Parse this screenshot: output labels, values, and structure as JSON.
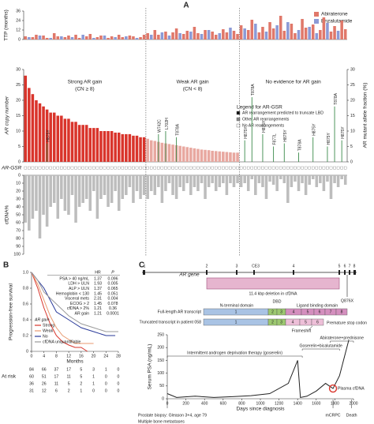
{
  "panel_labels": [
    "A",
    "B",
    "C"
  ],
  "chart_data": [
    {
      "type": "bar",
      "ylabel": "AR copy number",
      "ylim": [
        0,
        30
      ],
      "yticks": [
        0,
        5,
        10,
        15,
        20,
        25,
        30
      ],
      "y2label": "AR mutant allele fraction (%)",
      "y2lim": [
        0,
        30
      ],
      "y2ticks": [
        0,
        5,
        10,
        15,
        20,
        25,
        30
      ],
      "mutation_color": "#3a8a4a",
      "ttp": {
        "ylabel": "TTP (months)",
        "ylim": [
          0,
          36
        ],
        "yticks": [
          0,
          12,
          24,
          36
        ],
        "series": [
          {
            "name": "Abiraterone",
            "color": "#e0786a"
          },
          {
            "name": "Enzalutamide",
            "color": "#8c9ad6"
          }
        ]
      },
      "gsr": {
        "label": "AR-GSR",
        "legend_title": "Legend for AR-GSR",
        "legend": [
          "AR rearrangement predicted to truncate LBD",
          "Other AR rearrangements",
          "No AR rearrangements"
        ]
      },
      "cfdna": {
        "ylabel": "cfDNA%",
        "ylim": [
          0,
          100
        ],
        "yticks": [
          0,
          10,
          20,
          30,
          40,
          50,
          60,
          70,
          80,
          90,
          100
        ]
      },
      "groups": [
        {
          "name": "Strong AR gain",
          "note": "(CN ≥ 8)",
          "color": "#d9342b",
          "values": [
            28,
            24,
            22,
            20,
            19,
            18,
            17,
            16,
            16,
            15,
            15,
            14,
            14,
            13,
            13,
            12,
            12,
            12,
            11,
            11,
            11,
            10,
            10,
            10,
            10,
            9.5,
            9.5,
            9,
            9,
            9,
            8.5,
            8.5,
            8,
            8
          ],
          "mutation_values": [
            null,
            null,
            null,
            null,
            null,
            null,
            6,
            null,
            null,
            null,
            null,
            null,
            null,
            null,
            null,
            null,
            null,
            null,
            null,
            null,
            null,
            null,
            null,
            null,
            null,
            null,
            null,
            null,
            null,
            null,
            null,
            null,
            null,
            null
          ],
          "mutation_labels": [
            null,
            null,
            null,
            null,
            null,
            null,
            "H875Y",
            null,
            null,
            null,
            null,
            null,
            null,
            null,
            null,
            null,
            null,
            null,
            null,
            null,
            null,
            null,
            null,
            null,
            null,
            null,
            null,
            null,
            null,
            null,
            null,
            null,
            null,
            null
          ],
          "ttp": [
            [
              4,
              null,
              3,
              6,
              null,
              5,
              2,
              null,
              8,
              4,
              null,
              3,
              5,
              null,
              6,
              2,
              null,
              4,
              7,
              null,
              3,
              5,
              null,
              2,
              4,
              null,
              6,
              3,
              null,
              5,
              4,
              null,
              3,
              6
            ],
            [
              null,
              3,
              null,
              null,
              5,
              null,
              null,
              2,
              null,
              null,
              4,
              null,
              null,
              3,
              null,
              null,
              6,
              null,
              null,
              2,
              null,
              null,
              5,
              null,
              null,
              3,
              null,
              null,
              4,
              null,
              null,
              2,
              null,
              null
            ]
          ],
          "cfdna": [
            60,
            70,
            55,
            45,
            80,
            50,
            65,
            40,
            35,
            55,
            30,
            45,
            50,
            25,
            60,
            40,
            35,
            30,
            45,
            20,
            55,
            30,
            25,
            40,
            35,
            20,
            45,
            30,
            25,
            15,
            35,
            20,
            30,
            25
          ]
        },
        {
          "name": "Weak AR gain",
          "note": "(CN < 8)",
          "color": "#e8a8a0",
          "values": [
            7.5,
            7,
            6.8,
            6.5,
            6.2,
            6,
            5.8,
            5.6,
            5.4,
            5.2,
            5,
            4.8,
            4.6,
            4.4,
            4.2,
            4,
            3.9,
            3.8,
            3.6,
            3.5,
            3.4,
            3.3,
            3.2,
            3.1,
            3,
            3
          ],
          "mutation_values": [
            null,
            null,
            null,
            9,
            null,
            10,
            null,
            null,
            8,
            null,
            null,
            null,
            null,
            null,
            null,
            null,
            null,
            null,
            null,
            null,
            null,
            null,
            null,
            null,
            null,
            null
          ],
          "mutation_labels": [
            null,
            null,
            null,
            "W742C",
            null,
            "L702H",
            null,
            null,
            "T878A",
            null,
            null,
            null,
            null,
            null,
            null,
            null,
            null,
            null,
            null,
            null,
            null,
            null,
            null,
            null,
            null,
            null
          ],
          "ttp": [
            [
              8,
              null,
              12,
              6,
              null,
              10,
              null,
              9,
              14,
              null,
              7,
              11,
              null,
              16,
              8,
              null,
              12,
              null,
              10,
              6,
              null,
              13,
              9,
              null,
              11,
              7
            ],
            [
              null,
              6,
              null,
              null,
              9,
              null,
              5,
              null,
              null,
              8,
              null,
              null,
              10,
              null,
              null,
              7,
              null,
              12,
              null,
              null,
              8,
              null,
              null,
              15,
              null,
              null
            ]
          ],
          "cfdna": [
            30,
            20,
            25,
            15,
            35,
            20,
            10,
            25,
            30,
            15,
            20,
            10,
            25,
            15,
            20,
            10,
            30,
            15,
            10,
            20,
            15,
            10,
            25,
            10,
            15,
            10
          ]
        },
        {
          "name": "No evidence for AR gain",
          "values": [
            null,
            null,
            null,
            null,
            null,
            null,
            null,
            null,
            null,
            null,
            null,
            null,
            null,
            null,
            null,
            null,
            null,
            null,
            null,
            null,
            null,
            null,
            null,
            null,
            null,
            null,
            null,
            null,
            null,
            null
          ],
          "mutation_values": [
            null,
            7,
            null,
            21,
            null,
            null,
            9,
            null,
            null,
            5,
            null,
            null,
            6,
            null,
            null,
            null,
            3,
            null,
            null,
            null,
            8,
            null,
            null,
            null,
            5,
            null,
            18,
            null,
            7,
            null
          ],
          "mutation_labels": [
            null,
            "H875Y",
            null,
            "T878A",
            null,
            null,
            "H875Y",
            null,
            null,
            "F877L",
            null,
            null,
            "H875Y",
            null,
            null,
            null,
            "T878A",
            null,
            null,
            null,
            "H875Y",
            null,
            null,
            null,
            "H875Y",
            null,
            "T878A",
            null,
            "H875Y",
            null
          ],
          "ttp": [
            [
              18,
              null,
              12,
              25,
              null,
              9,
              16,
              null,
              22,
              14,
              null,
              30,
              11,
              null,
              20,
              8,
              null,
              26,
              15,
              null,
              19,
              null,
              12,
              28,
              null,
              10,
              17,
              null,
              24,
              13
            ],
            [
              null,
              14,
              null,
              null,
              20,
              null,
              null,
              10,
              null,
              null,
              18,
              null,
              null,
              22,
              null,
              null,
              12,
              null,
              null,
              16,
              null,
              8,
              null,
              null,
              21,
              null,
              null,
              11,
              null,
              null
            ]
          ],
          "cfdna": [
            15,
            10,
            20,
            5,
            25,
            10,
            15,
            30,
            8,
            12,
            20,
            5,
            10,
            35,
            15,
            8,
            20,
            10,
            25,
            12,
            5,
            15,
            10,
            20,
            8,
            30,
            10,
            15,
            5,
            12
          ]
        }
      ]
    },
    {
      "type": "step",
      "ylabel": "Progression-free survival",
      "xlabel": "Months",
      "xlim": [
        0,
        28
      ],
      "xticks": [
        0,
        4,
        8,
        12,
        16,
        20,
        24,
        28
      ],
      "ylim": [
        0,
        1
      ],
      "yticks": [
        0,
        0.2,
        0.4,
        0.6,
        0.8,
        {
          "value": 1,
          "label": "1.0"
        }
      ],
      "legend_title": "AR gain",
      "series": [
        {
          "name": "Strong",
          "color": "#d9342b",
          "x": [
            0,
            2,
            4,
            6,
            8,
            10,
            12,
            14,
            16,
            18
          ],
          "values": [
            1,
            0.8,
            0.55,
            0.35,
            0.2,
            0.12,
            0.08,
            0.05,
            0.05,
            0
          ],
          "at_risk": [
            31,
            12,
            6,
            2,
            1,
            0,
            0,
            0
          ]
        },
        {
          "name": "Weak",
          "color": "#e89a70",
          "x": [
            0,
            2,
            4,
            6,
            8,
            10,
            12,
            14,
            20
          ],
          "values": [
            1,
            0.85,
            0.65,
            0.45,
            0.3,
            0.2,
            0.15,
            0.1,
            0.1
          ],
          "at_risk": [
            36,
            26,
            11,
            5,
            2,
            1,
            0,
            0
          ]
        },
        {
          "name": "No",
          "color": "#2a3a9a",
          "x": [
            0,
            2,
            4,
            6,
            8,
            12,
            16,
            20,
            24,
            27
          ],
          "values": [
            1,
            0.9,
            0.8,
            0.65,
            0.5,
            0.4,
            0.3,
            0.25,
            0.2,
            0.2
          ],
          "at_risk": [
            60,
            51,
            17,
            11,
            5,
            1,
            0,
            0
          ]
        },
        {
          "name": "cfDNA unquantifiable",
          "color": "#9a9a9a",
          "x": [
            0,
            2,
            4,
            8,
            12,
            16,
            20,
            24,
            28
          ],
          "values": [
            1,
            0.9,
            0.75,
            0.6,
            0.45,
            0.35,
            0.3,
            0.25,
            0.25
          ],
          "at_risk": [
            84,
            66,
            37,
            17,
            5,
            3,
            1,
            0
          ]
        }
      ],
      "at_risk_label": "At risk",
      "hr_table": {
        "columns": [
          "HR",
          "P"
        ],
        "rows": [
          [
            "PSA > 40 ng/mL",
            "1.37",
            "0.096"
          ],
          [
            "LDH > ULN",
            "1.93",
            "0.005"
          ],
          [
            "ALP > ULN",
            "1.37",
            "0.065"
          ],
          [
            "Hemoglobin < 130",
            "1.45",
            "0.051"
          ],
          [
            "Visceral mets",
            "2.31",
            "0.004"
          ],
          [
            "ECOG > 2",
            "1.45",
            "0.078"
          ],
          [
            "cfDNA > 2%",
            "1.21",
            "0.36"
          ],
          [
            "AR gain",
            "1.21",
            "0.0001"
          ]
        ]
      }
    },
    {
      "type": "line",
      "ylabel": "Serum PSA (ng/mL)",
      "xlabel": "Days since diagnosis",
      "xlim": [
        0,
        2000
      ],
      "xticks": [
        0,
        200,
        400,
        600,
        800,
        1000,
        1200,
        1400,
        1600,
        1800,
        2000
      ],
      "ylim": [
        0,
        250
      ],
      "yticks": [
        0,
        50,
        100,
        150,
        200,
        250
      ],
      "color": "#222222",
      "x": [
        0,
        100,
        300,
        500,
        700,
        900,
        1100,
        1300,
        1400,
        1430,
        1500,
        1600,
        1700,
        1780,
        1850,
        1900,
        1950
      ],
      "values": [
        20,
        5,
        10,
        5,
        8,
        12,
        20,
        60,
        150,
        5,
        10,
        30,
        60,
        40,
        90,
        160,
        230
      ],
      "therapies": [
        {
          "label": "Intermittent androgen deprivation therapy (goserelin)",
          "start": 0,
          "end": 1450
        },
        {
          "label": "Goserelin+bicalutamide",
          "start": 1450,
          "end": 1850
        },
        {
          "label": "Abiraterone+prednisone",
          "start": 1750,
          "end": 2000
        }
      ],
      "highlight": {
        "label": "Plasma cfDNA",
        "x": 1780,
        "y": 40
      },
      "events": [
        {
          "label": [
            "Prostate biopsy: Gleason 3+4, age 79",
            "Multiple bone metastases"
          ],
          "x": 0
        },
        {
          "label": [
            "mCRPC"
          ],
          "x": 1780
        },
        {
          "label": [
            "Death"
          ],
          "x": 1980
        }
      ]
    }
  ],
  "diagram": {
    "gene_label": "AR gene",
    "exons": [
      "1",
      "2",
      "3",
      "CE3",
      "4",
      "5",
      "6",
      "7",
      "8"
    ],
    "deletion": "11.4 kbp deletion in cfDNA",
    "mutation": "Q876X",
    "domains": [
      "N-terminal domain",
      "DBD",
      "Ligand binding domain"
    ],
    "transcripts": [
      {
        "label": "Full-length AR transcript",
        "exons": [
          "1",
          "2",
          "3",
          "4",
          "5",
          "6",
          "7",
          "8"
        ]
      },
      {
        "label": "Truncated transcript in patient 058",
        "exons": [
          "1",
          "2",
          "3",
          "4",
          "5",
          "6"
        ]
      }
    ],
    "frameshift": "Frameshift",
    "stop": "Premature stop codon"
  }
}
